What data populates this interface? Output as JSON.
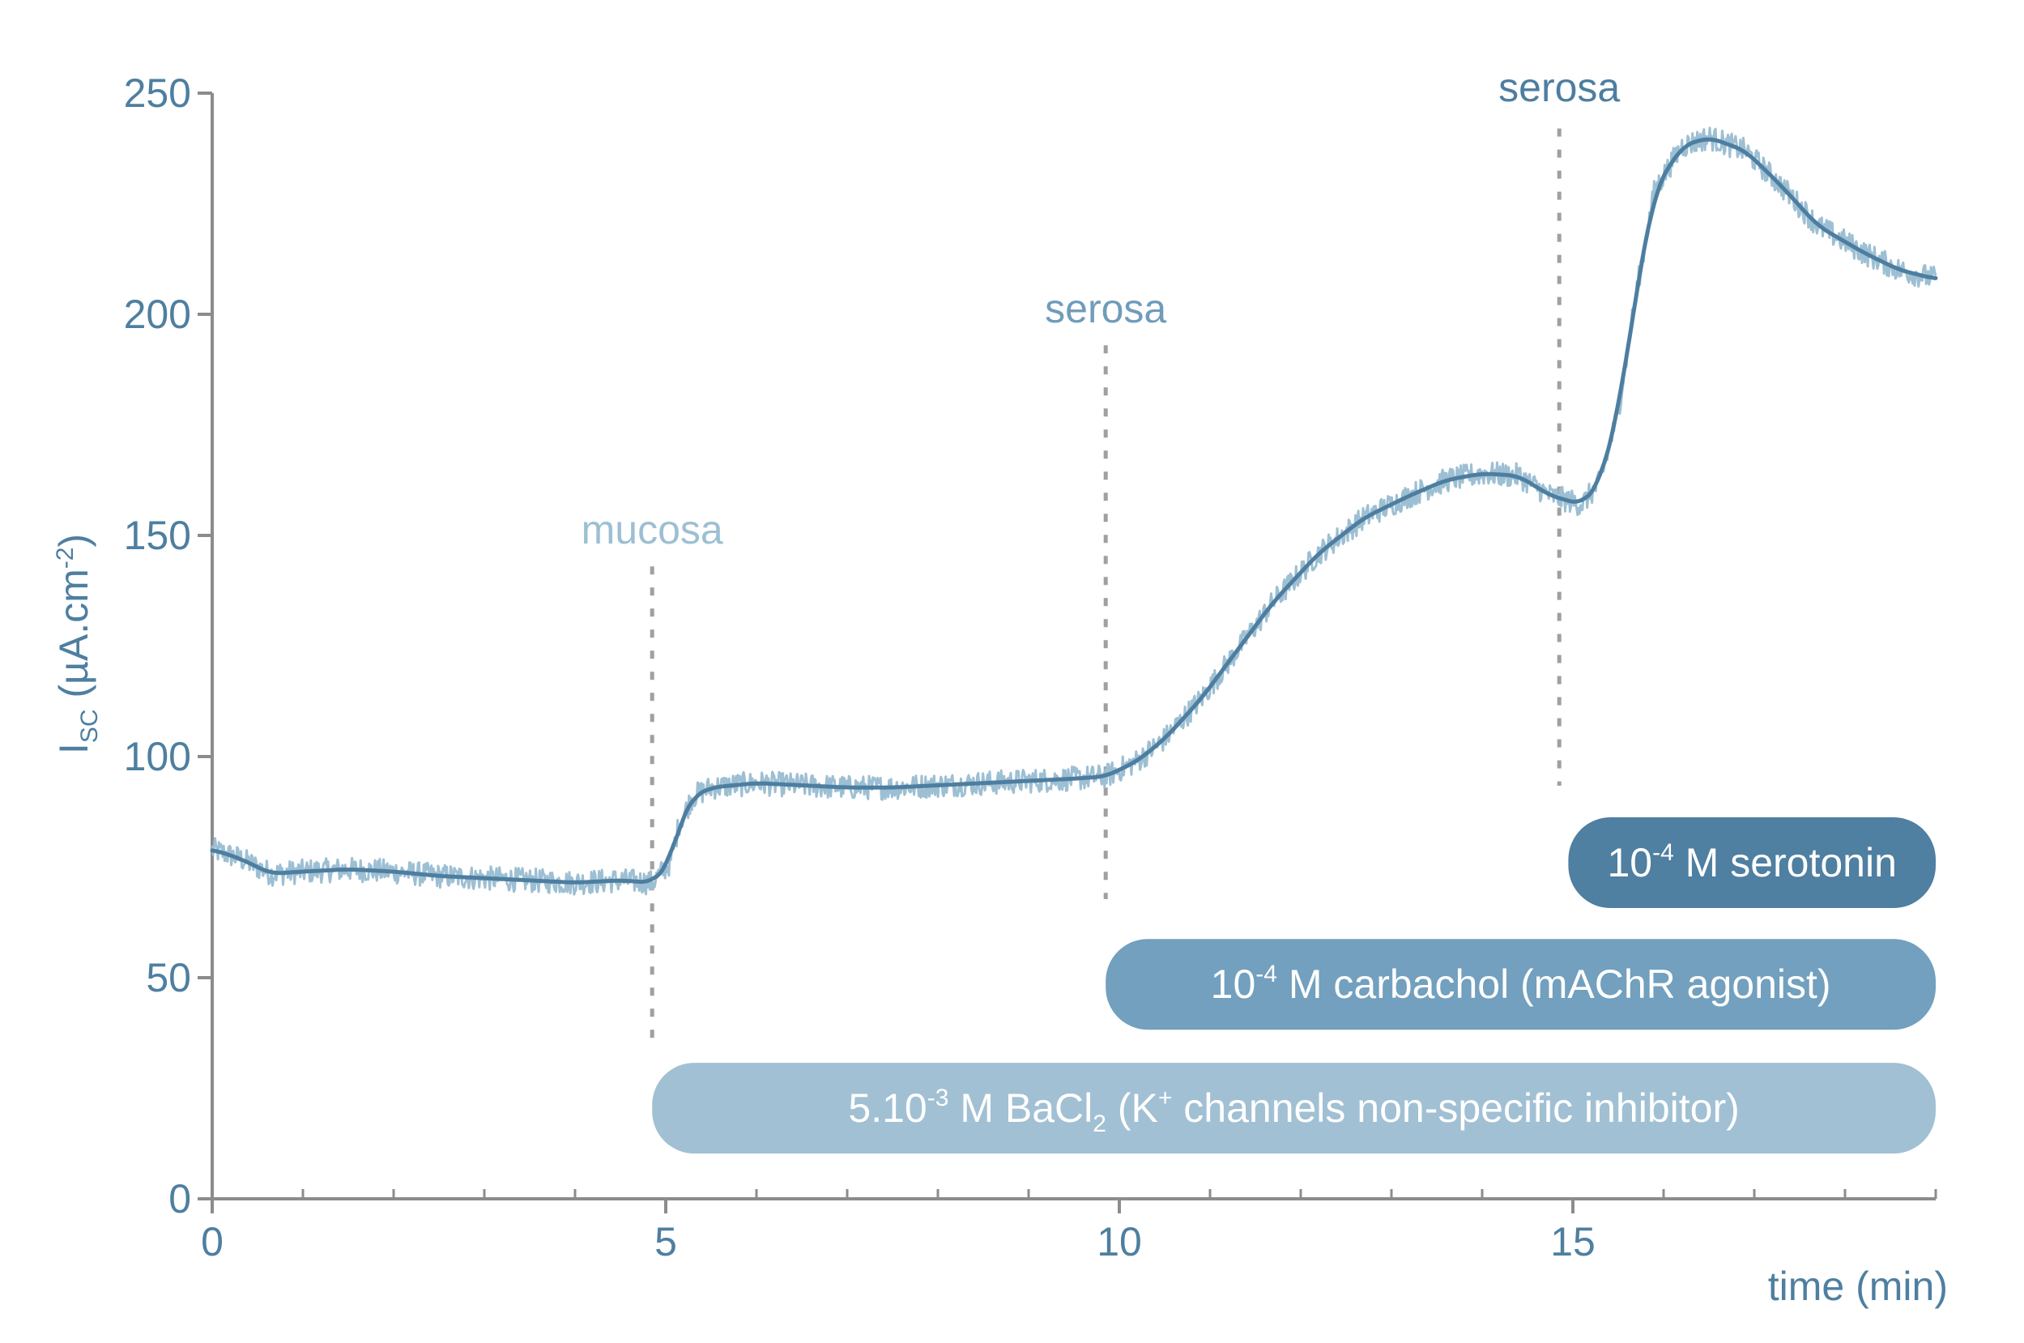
{
  "colors": {
    "axis": "#8c8c8c",
    "tick_label": "#4e7fa0",
    "raw_trace": "#9dbfd3",
    "smooth_trace": "#4d7ea0",
    "mucosa": "#9dbfd3",
    "serosa_1": "#6f9cbb",
    "serosa_2": "#4d7ea0",
    "bar_serotonin": "#4f7fa1",
    "bar_carbachol": "#72a0be",
    "bar_bacl2": "#a1c0d3",
    "bar_text": "#ffffff",
    "marker_line": "#a0a0a0"
  },
  "chart_data": {
    "type": "line",
    "title": "",
    "xlabel": "time (min)",
    "ylabel": {
      "main": "I",
      "sub": "SC",
      "rest": " (µA.cm",
      "sup": "-2",
      "end": ")"
    },
    "xlim": [
      0,
      19
    ],
    "ylim": [
      0,
      250
    ],
    "x_ticks": [
      0,
      5,
      10,
      15
    ],
    "x_minor_ticks": [
      1,
      2,
      3,
      4,
      6,
      7,
      8,
      9,
      11,
      12,
      13,
      14,
      16,
      17,
      18,
      19
    ],
    "y_ticks": [
      0,
      50,
      100,
      150,
      200,
      250
    ],
    "grid": false,
    "series": [
      {
        "points": [
          [
            0,
            79
          ],
          [
            0.3,
            77
          ],
          [
            0.5,
            75
          ],
          [
            0.65,
            73.5
          ],
          [
            1,
            74
          ],
          [
            1.5,
            74.5
          ],
          [
            2,
            74
          ],
          [
            2.5,
            73
          ],
          [
            3,
            72.5
          ],
          [
            3.5,
            72
          ],
          [
            4,
            71.5
          ],
          [
            4.5,
            72
          ],
          [
            4.85,
            71.5
          ],
          [
            5.05,
            76
          ],
          [
            5.15,
            85
          ],
          [
            5.3,
            91
          ],
          [
            5.5,
            93
          ],
          [
            6,
            94
          ],
          [
            6.5,
            93.5
          ],
          [
            7,
            93
          ],
          [
            7.5,
            93
          ],
          [
            8,
            93.5
          ],
          [
            8.5,
            94
          ],
          [
            9,
            94.5
          ],
          [
            9.5,
            95
          ],
          [
            9.85,
            95.5
          ],
          [
            10.2,
            99
          ],
          [
            10.5,
            104
          ],
          [
            10.9,
            113
          ],
          [
            11.3,
            124
          ],
          [
            11.7,
            135
          ],
          [
            12.2,
            146
          ],
          [
            12.7,
            154
          ],
          [
            13.2,
            159
          ],
          [
            13.6,
            162.5
          ],
          [
            14.0,
            164
          ],
          [
            14.4,
            163.5
          ],
          [
            14.75,
            159
          ],
          [
            15.1,
            157
          ],
          [
            15.3,
            162
          ],
          [
            15.5,
            178
          ],
          [
            15.7,
            205
          ],
          [
            15.9,
            228
          ],
          [
            16.2,
            238
          ],
          [
            16.5,
            240
          ],
          [
            16.9,
            237
          ],
          [
            17.3,
            229
          ],
          [
            17.7,
            220
          ],
          [
            18.2,
            214
          ],
          [
            18.6,
            210
          ],
          [
            19,
            208
          ]
        ]
      }
    ],
    "additions": [
      {
        "x": 4.85,
        "label": "mucosa",
        "color_key": "mucosa",
        "y_top": 143,
        "label_y": 150
      },
      {
        "x": 9.85,
        "label": "serosa",
        "color_key": "serosa_1",
        "y_top": 193,
        "label_y": 200
      },
      {
        "x": 14.85,
        "label": "serosa",
        "color_key": "serosa_2",
        "y_top": 242,
        "label_y": 250
      }
    ],
    "treatments": [
      {
        "x_start": 14.95,
        "x_end": 19,
        "y_center": 76,
        "color_key": "bar_serotonin",
        "label_parts": [
          {
            "t": "10"
          },
          {
            "t": "-4",
            "sup": true
          },
          {
            "t": " M serotonin"
          }
        ]
      },
      {
        "x_start": 9.85,
        "x_end": 19,
        "y_center": 48.5,
        "color_key": "bar_carbachol",
        "label_parts": [
          {
            "t": "10"
          },
          {
            "t": "-4",
            "sup": true
          },
          {
            "t": " M carbachol (mAChR agonist)"
          }
        ]
      },
      {
        "x_start": 4.85,
        "x_end": 19,
        "y_center": 20.5,
        "color_key": "bar_bacl2",
        "label_parts": [
          {
            "t": "5.10"
          },
          {
            "t": "-3",
            "sup": true
          },
          {
            "t": " M BaCl"
          },
          {
            "t": "2",
            "sub": true
          },
          {
            "t": " (K"
          },
          {
            "t": "+",
            "sup": true
          },
          {
            "t": " channels non-specific inhibitor)"
          }
        ]
      }
    ]
  }
}
